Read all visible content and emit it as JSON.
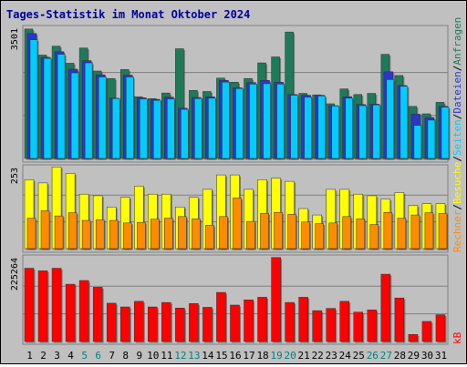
{
  "chart_data": [
    {
      "type": "bar",
      "title": "Tages-Statistik im Monat Oktober 2024",
      "ymax_label": "3501",
      "ylim": [
        0,
        3501
      ],
      "categories": [
        "1",
        "2",
        "3",
        "4",
        "5",
        "6",
        "7",
        "8",
        "9",
        "10",
        "11",
        "12",
        "13",
        "14",
        "15",
        "16",
        "17",
        "18",
        "19",
        "20",
        "21",
        "22",
        "23",
        "24",
        "25",
        "26",
        "27",
        "28",
        "29",
        "30",
        "31"
      ],
      "weekend_days": [
        "5",
        "6",
        "12",
        "13",
        "19",
        "20",
        "26",
        "27"
      ],
      "grid": true,
      "series": [
        {
          "name": "Anfragen",
          "color": "#1f7a5a",
          "values": [
            3480,
            2780,
            3020,
            2560,
            2970,
            2350,
            2150,
            2390,
            1660,
            1610,
            1760,
            2950,
            1830,
            1800,
            2160,
            2050,
            2150,
            2570,
            2730,
            3400,
            1750,
            1710,
            1470,
            1870,
            1720,
            1750,
            2800,
            2230,
            1400,
            1200,
            1510
          ]
        },
        {
          "name": "Dateien",
          "color": "#2a36c8",
          "values": [
            3360,
            2720,
            2870,
            2400,
            2630,
            2250,
            1620,
            2240,
            1630,
            1590,
            1650,
            1350,
            1640,
            1660,
            2100,
            1900,
            2040,
            2100,
            2050,
            1720,
            1700,
            1700,
            1420,
            1660,
            1450,
            1460,
            2330,
            1960,
            1190,
            1100,
            1400
          ]
        },
        {
          "name": "Seiten",
          "color": "#00ccff",
          "values": [
            3190,
            2690,
            2800,
            2300,
            2570,
            2190,
            1610,
            2190,
            1600,
            1560,
            1600,
            1320,
            1610,
            1620,
            2050,
            1880,
            2000,
            2010,
            2000,
            1700,
            1650,
            1680,
            1410,
            1620,
            1420,
            1440,
            2120,
            1940,
            890,
            1030,
            1380
          ]
        }
      ]
    },
    {
      "type": "bar",
      "ymax_label": "253",
      "ylim": [
        0,
        253
      ],
      "categories": [
        "1",
        "2",
        "3",
        "4",
        "5",
        "6",
        "7",
        "8",
        "9",
        "10",
        "11",
        "12",
        "13",
        "14",
        "15",
        "16",
        "17",
        "18",
        "19",
        "20",
        "21",
        "22",
        "23",
        "24",
        "25",
        "26",
        "27",
        "28",
        "29",
        "30",
        "31"
      ],
      "grid": true,
      "series": [
        {
          "name": "Besuche",
          "color": "#ffff00",
          "values": [
            215,
            205,
            255,
            235,
            170,
            165,
            130,
            160,
            195,
            170,
            170,
            130,
            160,
            185,
            230,
            230,
            185,
            215,
            220,
            210,
            125,
            105,
            185,
            185,
            170,
            165,
            155,
            175,
            135,
            140,
            140
          ]
        },
        {
          "name": "Rechner",
          "color": "#ff8c00",
          "values": [
            95,
            118,
            102,
            112,
            88,
            90,
            88,
            80,
            82,
            92,
            95,
            100,
            93,
            73,
            100,
            158,
            85,
            110,
            113,
            107,
            83,
            78,
            80,
            100,
            93,
            75,
            113,
            95,
            105,
            112,
            110
          ]
        }
      ]
    },
    {
      "type": "bar",
      "ymax_label": "225264",
      "ylim": [
        0,
        225264
      ],
      "categories": [
        "1",
        "2",
        "3",
        "4",
        "5",
        "6",
        "7",
        "8",
        "9",
        "10",
        "11",
        "12",
        "13",
        "14",
        "15",
        "16",
        "17",
        "18",
        "19",
        "20",
        "21",
        "22",
        "23",
        "24",
        "25",
        "26",
        "27",
        "28",
        "29",
        "30",
        "31"
      ],
      "grid": true,
      "series": [
        {
          "name": "kB",
          "color": "#ff0000",
          "values": [
            197000,
            190000,
            197000,
            154000,
            164000,
            146000,
            103000,
            93000,
            108000,
            93000,
            105000,
            90000,
            102000,
            92000,
            132000,
            98000,
            112000,
            119000,
            226000,
            105000,
            119000,
            83000,
            89000,
            108000,
            79000,
            85000,
            181000,
            117000,
            19000,
            54000,
            72000
          ]
        }
      ]
    }
  ],
  "legend": {
    "top_parts": [
      "Anfragen",
      "Dateien",
      "Seiten",
      "Besuche",
      "Rechner"
    ],
    "separator": "/",
    "bottom": "kB"
  }
}
